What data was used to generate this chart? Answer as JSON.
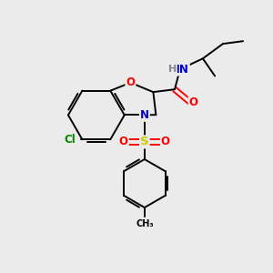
{
  "background_color": "#ebebeb",
  "atom_colors": {
    "O": "#ff0000",
    "N": "#0000cc",
    "S": "#cccc00",
    "Cl": "#008800",
    "H": "#888888",
    "C": "#000000"
  },
  "font_size": 8.5,
  "fig_size": [
    3.0,
    3.0
  ],
  "dpi": 100
}
